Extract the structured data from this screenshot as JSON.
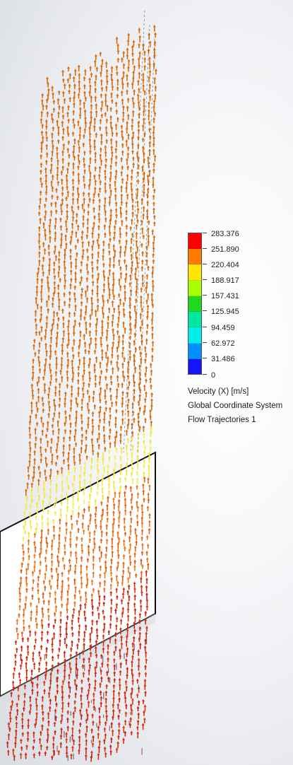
{
  "legend": {
    "values": [
      "283.376",
      "251.890",
      "220.404",
      "188.917",
      "157.431",
      "125.945",
      "94.459",
      "62.972",
      "31.486",
      "0"
    ],
    "colors": [
      "#ff0000",
      "#ff7a00",
      "#ffe600",
      "#a8ff00",
      "#20d820",
      "#00e8a0",
      "#00ecec",
      "#0090ff",
      "#1414ff"
    ]
  },
  "info": {
    "quantity": "Velocity (X) [m/s]",
    "coordinate_system": "Global Coordinate System",
    "plot_name": "Flow Trajectories 1"
  },
  "scene": {
    "plate_fill": "#ffffff",
    "plate_edge": "#111111",
    "arrow_colors": {
      "upper": "#d86c10",
      "transition": "#f2e52a",
      "lower": "#e55a12",
      "bottom": "#cc1f14"
    }
  }
}
